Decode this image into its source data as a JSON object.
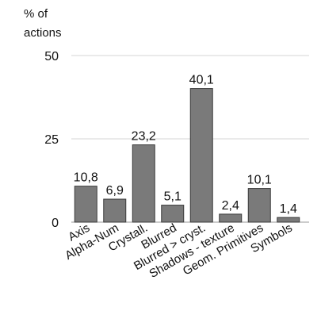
{
  "chart_data": {
    "type": "bar",
    "ylabel_lines": [
      "% of",
      "actions"
    ],
    "xlabel": "",
    "ylim": [
      0,
      50
    ],
    "yticks": [
      0,
      25,
      50
    ],
    "grid": true,
    "legend": "none",
    "bar_color": "#7a7a7a",
    "categories": [
      "Axis",
      "Alpha-Num",
      "Crystall.",
      "Blurred",
      "Blurred > cryst.",
      "Shadows - texture",
      "Geom. Primitives",
      "Symbols"
    ],
    "values": [
      10.8,
      6.9,
      23.2,
      5.1,
      40.1,
      2.4,
      10.1,
      1.4
    ],
    "value_labels": [
      "10,8",
      "6,9",
      "23,2",
      "5,1",
      "40,1",
      "2,4",
      "10,1",
      "1,4"
    ]
  }
}
